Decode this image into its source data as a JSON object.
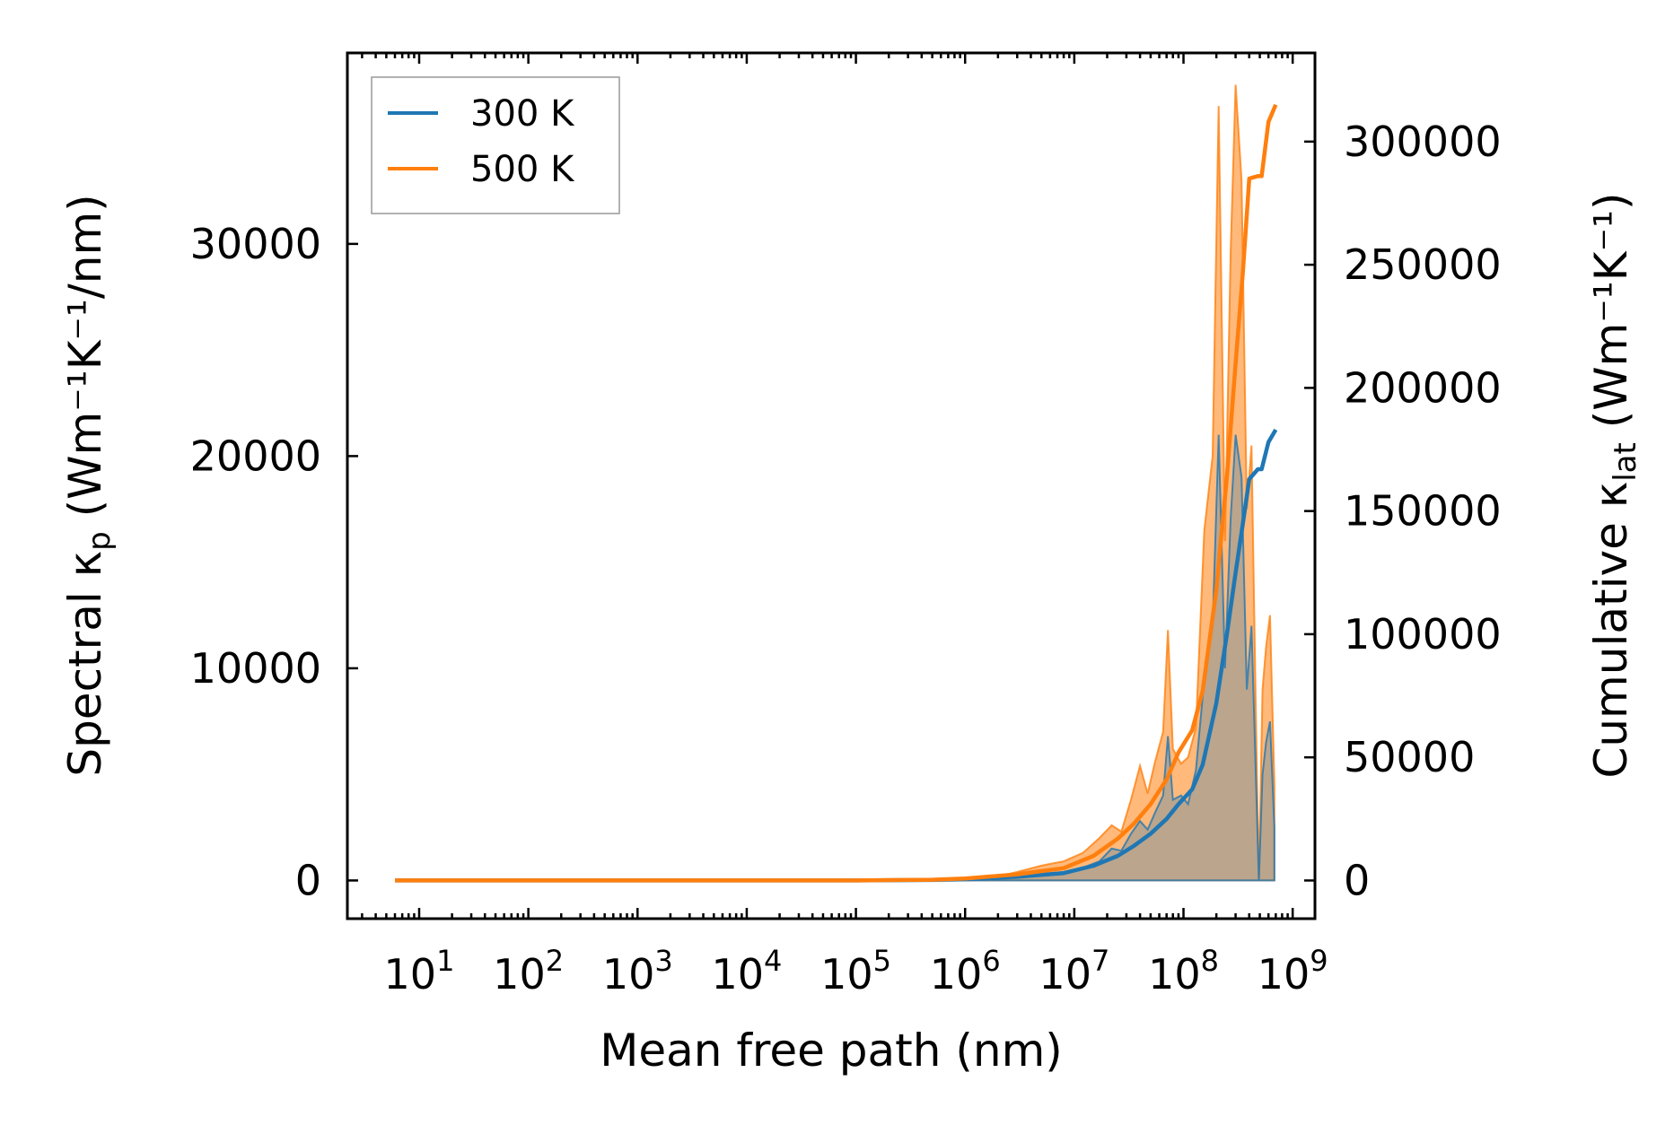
{
  "chart_data": {
    "type": "line",
    "xscale": "log",
    "xlabel": "Mean free path (nm)",
    "ylabel_left": {
      "base": "Spectral κ",
      "sub": "p",
      "units": " (Wm⁻¹K⁻¹/nm)"
    },
    "ylabel_right": {
      "base": "Cumulative κ",
      "sub": "lat",
      "units": " (Wm⁻¹K⁻¹)"
    },
    "xlim": [
      2.2,
      1600000000.0
    ],
    "ylim_left": [
      -1800,
      39000
    ],
    "ylim_right": [
      -15500,
      336000
    ],
    "x_ticks": [
      {
        "base": "10",
        "exp": "1",
        "value": 10
      },
      {
        "base": "10",
        "exp": "2",
        "value": 100
      },
      {
        "base": "10",
        "exp": "3",
        "value": 1000
      },
      {
        "base": "10",
        "exp": "4",
        "value": 10000
      },
      {
        "base": "10",
        "exp": "5",
        "value": 100000
      },
      {
        "base": "10",
        "exp": "6",
        "value": 1000000
      },
      {
        "base": "10",
        "exp": "7",
        "value": 10000000
      },
      {
        "base": "10",
        "exp": "8",
        "value": 100000000
      },
      {
        "base": "10",
        "exp": "9",
        "value": 1000000000
      }
    ],
    "y_left_ticks": [
      "0",
      "10000",
      "20000",
      "30000"
    ],
    "y_right_ticks": [
      "0",
      "50000",
      "100000",
      "150000",
      "200000",
      "250000",
      "300000"
    ],
    "legend_position": "upper-left",
    "colors": {
      "300K": "#1f77b4",
      "500K": "#ff7f0e",
      "spectral_300K_fill": "#1f77b4",
      "spectral_500K_fill": "#ff7f0e"
    },
    "series": [
      {
        "name": "300 K",
        "axis": "right",
        "kind": "cumulative",
        "x": [
          6,
          100,
          1000,
          10000,
          100000,
          500000,
          1000000,
          3000000,
          8000000,
          15000000,
          25000000,
          35000000,
          50000000,
          70000000,
          90000000,
          120000000,
          150000000,
          200000000,
          250000000,
          300000000,
          350000000,
          400000000,
          480000000,
          520000000,
          600000000,
          700000000
        ],
        "y": [
          0,
          0,
          0,
          0,
          0,
          200,
          500,
          1500,
          3000,
          6000,
          10000,
          14000,
          19000,
          25000,
          31000,
          37000,
          47000,
          72000,
          100000,
          125000,
          145000,
          163000,
          167000,
          167000,
          178000,
          183000
        ]
      },
      {
        "name": "500 K",
        "axis": "right",
        "kind": "cumulative",
        "x": [
          6,
          100,
          1000,
          10000,
          100000,
          500000,
          1000000,
          3000000,
          8000000,
          15000000,
          25000000,
          35000000,
          50000000,
          70000000,
          90000000,
          120000000,
          150000000,
          200000000,
          250000000,
          300000000,
          350000000,
          400000000,
          480000000,
          520000000,
          600000000,
          700000000
        ],
        "y": [
          0,
          0,
          0,
          0,
          0,
          300,
          800,
          2500,
          5000,
          10000,
          17000,
          23000,
          31000,
          41000,
          52000,
          61000,
          77000,
          118000,
          164000,
          210000,
          247000,
          285000,
          286000,
          286000,
          308000,
          315000
        ]
      },
      {
        "name": "",
        "axis": "left",
        "kind": "spectral-filled",
        "x": [
          6,
          100,
          1000,
          10000,
          100000,
          500000,
          1000000,
          2000000,
          3000000,
          5000000,
          8000000,
          12000000,
          17000000,
          22000000,
          27000000,
          33000000,
          40000000,
          47000000,
          55000000,
          65000000,
          72000000,
          80000000,
          95000000,
          110000000,
          130000000,
          155000000,
          185000000,
          210000000,
          240000000,
          270000000,
          300000000,
          340000000,
          380000000,
          420000000,
          460000000,
          490000000,
          530000000,
          570000000,
          620000000,
          680000000
        ],
        "y": [
          0,
          0,
          0,
          0,
          0,
          40,
          80,
          100,
          200,
          300,
          400,
          600,
          900,
          1500,
          1400,
          2200,
          2800,
          2400,
          3200,
          4000,
          6800,
          3800,
          4000,
          3600,
          5200,
          9500,
          12000,
          21000,
          10000,
          17000,
          21000,
          19000,
          9000,
          12000,
          5000,
          0,
          5000,
          6500,
          7500,
          2500
        ]
      },
      {
        "name": "",
        "axis": "left",
        "kind": "spectral-filled",
        "x": [
          6,
          100,
          1000,
          10000,
          100000,
          500000,
          1000000,
          2000000,
          3000000,
          5000000,
          8000000,
          12000000,
          17000000,
          22000000,
          27000000,
          33000000,
          40000000,
          47000000,
          55000000,
          65000000,
          72000000,
          80000000,
          95000000,
          110000000,
          130000000,
          155000000,
          185000000,
          210000000,
          240000000,
          270000000,
          300000000,
          340000000,
          380000000,
          420000000,
          460000000,
          490000000,
          530000000,
          570000000,
          620000000,
          680000000
        ],
        "y": [
          0,
          0,
          0,
          0,
          0,
          60,
          120,
          200,
          400,
          700,
          900,
          1300,
          2000,
          2600,
          2300,
          3800,
          5400,
          4100,
          5600,
          7000,
          11800,
          6200,
          5500,
          5800,
          7200,
          16500,
          20000,
          36500,
          16000,
          29500,
          37500,
          33000,
          17500,
          20500,
          8000,
          0,
          9000,
          11000,
          12500,
          4500
        ]
      }
    ]
  }
}
